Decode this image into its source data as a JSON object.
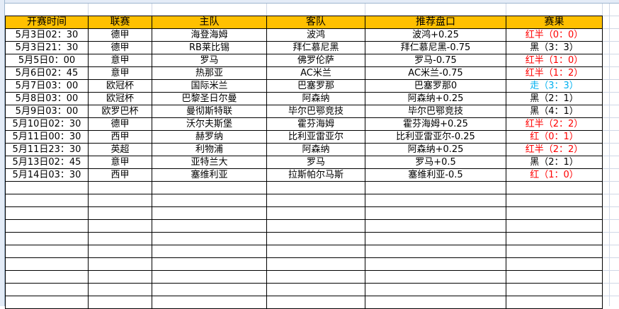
{
  "colors": {
    "header_bg": "#ffc000",
    "win": "#ff0000",
    "push": "#00b0f0",
    "loss": "#000000"
  },
  "table": {
    "headers": [
      "开赛时间",
      "联赛",
      "主队",
      "客队",
      "推荐盘口",
      "赛果"
    ],
    "rows": [
      {
        "time": "5月3日02：30",
        "league": "德甲",
        "home": "海登海姆",
        "away": "波鸿",
        "pick": "波鸿+0.25",
        "result": "红半（0：0）",
        "status": "red"
      },
      {
        "time": "5月3日21：30",
        "league": "德甲",
        "home": "RB莱比锡",
        "away": "拜仁慕尼黑",
        "pick": "拜仁慕尼黑-0.75",
        "result": "黑（3：3）",
        "status": "black"
      },
      {
        "time": "5月5日0：00",
        "league": "意甲",
        "home": "罗马",
        "away": "佛罗伦萨",
        "pick": "罗马-0.75",
        "result": "红半（1：0）",
        "status": "red"
      },
      {
        "time": "5月6日02：45",
        "league": "意甲",
        "home": "热那亚",
        "away": "AC米兰",
        "pick": "AC米兰-0.75",
        "result": "红半（1：2）",
        "status": "red"
      },
      {
        "time": "5月7日03：00",
        "league": "欧冠杯",
        "home": "国际米兰",
        "away": "巴塞罗那",
        "pick": "巴塞罗那0",
        "result": "走（3：3）",
        "status": "blue"
      },
      {
        "time": "5月8日03：00",
        "league": "欧冠杯",
        "home": "巴黎圣日尔曼",
        "away": "阿森纳",
        "pick": "阿森纳+0.25",
        "result": "黑（2：1）",
        "status": "black"
      },
      {
        "time": "5月9日03：00",
        "league": "欧罗巴杯",
        "home": "曼彻斯特联",
        "away": "毕尔巴鄂竞技",
        "pick": "毕尔巴鄂竞技",
        "result": "黑（4：1）",
        "status": "black"
      },
      {
        "time": "5月10日02：30",
        "league": "德甲",
        "home": "沃尔夫斯堡",
        "away": "霍芬海姆",
        "pick": "霍芬海姆+0.25",
        "result": "红半（2：2）",
        "status": "red"
      },
      {
        "time": "5月11日00：30",
        "league": "西甲",
        "home": "赫罗纳",
        "away": "比利亚雷亚尔",
        "pick": "比利亚雷亚尔-0.25",
        "result": "红（0：1）",
        "status": "red"
      },
      {
        "time": "5月11日23：30",
        "league": "英超",
        "home": "利物浦",
        "away": "阿森纳",
        "pick": "阿森纳+0.25",
        "result": "红半（2：2）",
        "status": "red"
      },
      {
        "time": "5月13日02：45",
        "league": "意甲",
        "home": "亚特兰大",
        "away": "罗马",
        "pick": "罗马+0.5",
        "result": "黑（2：1）",
        "status": "black"
      },
      {
        "time": "5月14日03：30",
        "league": "西甲",
        "home": "塞维利亚",
        "away": "拉斯帕尔马斯",
        "pick": "塞维利亚-0.5",
        "result": "红（1：0）",
        "status": "red"
      }
    ]
  }
}
